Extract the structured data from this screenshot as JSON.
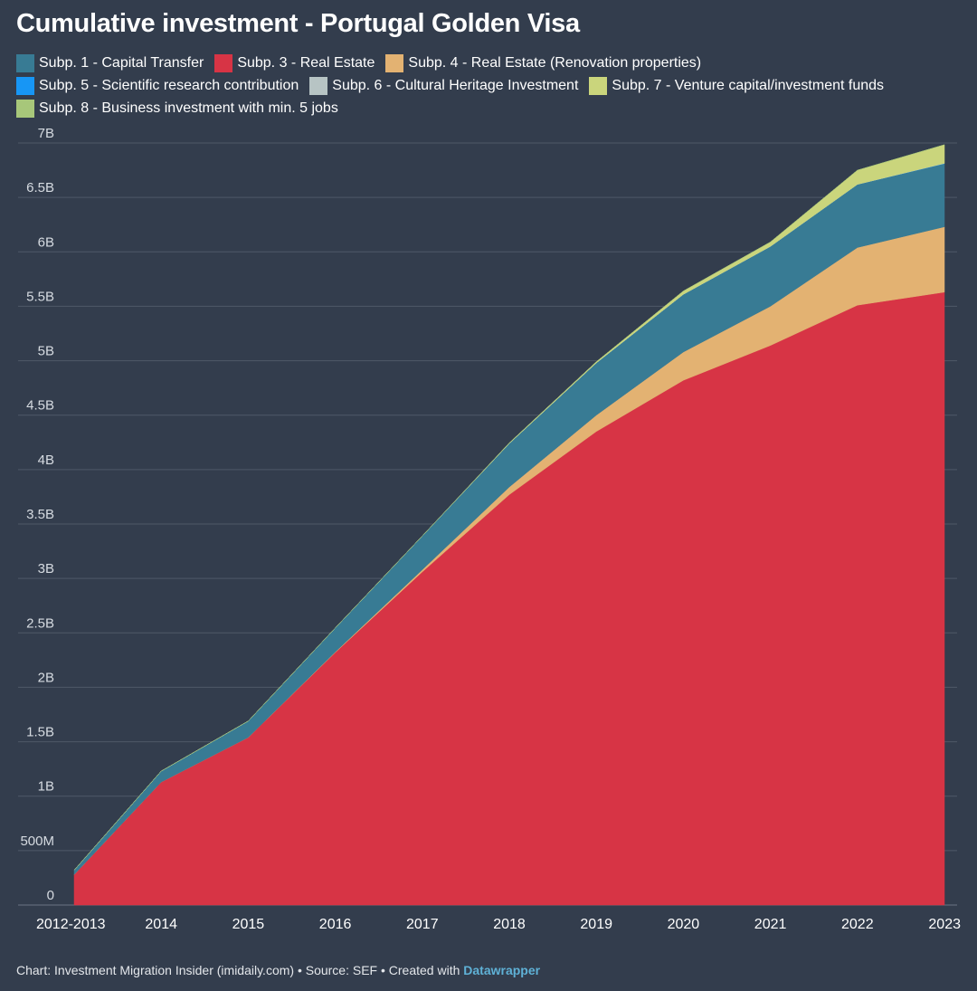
{
  "chart_data": {
    "type": "area",
    "stacked": true,
    "title": "Cumulative investment - Portugal Golden Visa",
    "xlabel": "",
    "ylabel": "",
    "ylim": [
      0,
      7000000000
    ],
    "grid": true,
    "legend_position": "top",
    "x": [
      "2012-2013",
      "2014",
      "2015",
      "2016",
      "2017",
      "2018",
      "2019",
      "2020",
      "2021",
      "2022",
      "2023"
    ],
    "y_ticks": [
      {
        "value": 0,
        "label": "0"
      },
      {
        "value": 500000000,
        "label": "500M"
      },
      {
        "value": 1000000000,
        "label": "1B"
      },
      {
        "value": 1500000000,
        "label": "1.5B"
      },
      {
        "value": 2000000000,
        "label": "2B"
      },
      {
        "value": 2500000000,
        "label": "2.5B"
      },
      {
        "value": 3000000000,
        "label": "3B"
      },
      {
        "value": 3500000000,
        "label": "3.5B"
      },
      {
        "value": 4000000000,
        "label": "4B"
      },
      {
        "value": 4500000000,
        "label": "4.5B"
      },
      {
        "value": 5000000000,
        "label": "5B"
      },
      {
        "value": 5500000000,
        "label": "5.5B"
      },
      {
        "value": 6000000000,
        "label": "6B"
      },
      {
        "value": 6500000000,
        "label": "6.5B"
      },
      {
        "value": 7000000000,
        "label": "7B"
      }
    ],
    "series": [
      {
        "name": "Subp. 3 - Real Estate",
        "color": "#d73445",
        "values": [
          280000000,
          1130000000,
          1540000000,
          2320000000,
          3060000000,
          3770000000,
          4350000000,
          4820000000,
          5140000000,
          5510000000,
          5630000000
        ]
      },
      {
        "name": "Subp. 4 - Real Estate (Renovation properties)",
        "color": "#e3b272",
        "values": [
          0,
          0,
          0,
          5000000,
          20000000,
          70000000,
          150000000,
          260000000,
          360000000,
          530000000,
          600000000
        ]
      },
      {
        "name": "Subp. 1 - Capital Transfer",
        "color": "#387b94",
        "values": [
          40000000,
          100000000,
          150000000,
          220000000,
          310000000,
          400000000,
          480000000,
          530000000,
          550000000,
          580000000,
          580000000
        ]
      },
      {
        "name": "Subp. 5 - Scientific research contribution",
        "color": "#1796f5",
        "values": [
          0,
          0,
          0,
          0,
          0,
          0,
          0,
          0,
          0,
          0,
          2000000
        ]
      },
      {
        "name": "Subp. 6 - Cultural Heritage Investment",
        "color": "#b7c4c4",
        "values": [
          0,
          0,
          0,
          0,
          0,
          0,
          0,
          0,
          0,
          0,
          2000000
        ]
      },
      {
        "name": "Subp. 7 - Venture capital/investment funds",
        "color": "#cad57c",
        "values": [
          0,
          0,
          0,
          0,
          0,
          5000000,
          10000000,
          30000000,
          40000000,
          130000000,
          170000000
        ]
      },
      {
        "name": "Subp. 8 - Business investment with min. 5 jobs",
        "color": "#a7c77a",
        "values": [
          0,
          0,
          0,
          0,
          0,
          0,
          0,
          0,
          0,
          0,
          0
        ]
      }
    ]
  },
  "legend": [
    {
      "label": "Subp. 1 - Capital Transfer",
      "color": "#387b94"
    },
    {
      "label": "Subp. 3 - Real Estate",
      "color": "#d73445"
    },
    {
      "label": "Subp. 4 - Real Estate (Renovation properties)",
      "color": "#e3b272"
    },
    {
      "label": "Subp. 5 - Scientific research contribution",
      "color": "#1796f5"
    },
    {
      "label": "Subp. 6 - Cultural Heritage Investment",
      "color": "#b7c4c4"
    },
    {
      "label": "Subp. 7 - Venture capital/investment funds",
      "color": "#cad57c"
    },
    {
      "label": "Subp. 8 - Business investment with min. 5 jobs",
      "color": "#a7c77a"
    }
  ],
  "footer": {
    "text": "Chart: Investment Migration Insider (imidaily.com) • Source: SEF • Created with ",
    "brand": "Datawrapper"
  },
  "colors": {
    "background": "#333d4d",
    "grid": "#4f5968",
    "axis_text": "#d6dbe1"
  }
}
